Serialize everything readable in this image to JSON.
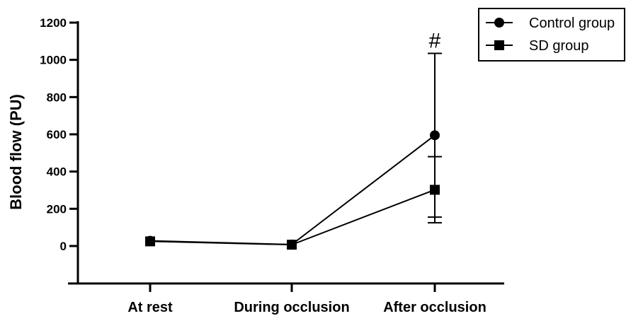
{
  "chart_data": {
    "type": "line",
    "title": "",
    "xlabel": "",
    "ylabel": "Blood flow (PU)",
    "categories": [
      "At rest",
      "During occlusion",
      "After occlusion"
    ],
    "ylim": [
      -200,
      1200
    ],
    "yticks": [
      0,
      200,
      400,
      600,
      800,
      1000,
      1200
    ],
    "series": [
      {
        "name": "Control group",
        "marker": "circle",
        "values": [
          28,
          8,
          595
        ],
        "error_upper": [
          null,
          null,
          1035
        ],
        "error_lower": [
          null,
          null,
          155
        ]
      },
      {
        "name": "SD group",
        "marker": "square",
        "values": [
          25,
          7,
          302
        ],
        "error_upper": [
          null,
          null,
          480
        ],
        "error_lower": [
          null,
          null,
          125
        ]
      }
    ],
    "annotations": [
      {
        "text": "#",
        "category": "After occlusion",
        "value": 1035
      }
    ],
    "legend_position": "top-right",
    "grid": false,
    "colors": {
      "line": "#000000",
      "marker": "#000000"
    }
  }
}
